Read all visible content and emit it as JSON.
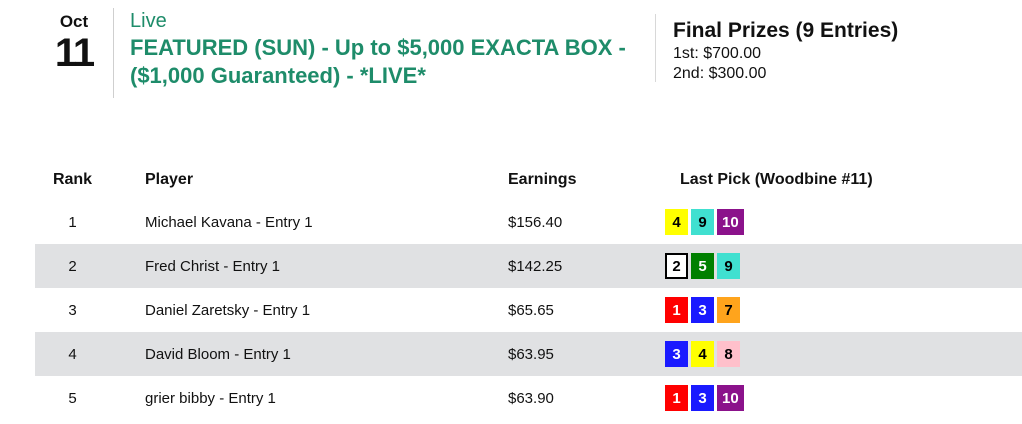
{
  "colors": {
    "accent_green": "#1e8c6a",
    "row_alt_bg": "#e0e1e3"
  },
  "event_header": {
    "date_month": "Oct",
    "date_day": "11",
    "status_label": "Live",
    "event_title": "FEATURED (SUN) - Up to $5,000 EXACTA BOX - ($1,000 Guaranteed) - *LIVE*",
    "prizes_title": "Final Prizes (9 Entries)",
    "prize_lines": [
      "1st: $700.00",
      "2nd: $300.00"
    ]
  },
  "leaderboard": {
    "columns": {
      "rank": "Rank",
      "player": "Player",
      "earnings": "Earnings",
      "last_pick": "Last Pick (Woodbine #11)"
    },
    "rows": [
      {
        "rank": "1",
        "player": "Michael Kavana - Entry 1",
        "earnings": "$156.40",
        "picks": [
          {
            "number": "4",
            "bg": "#ffff00",
            "fg": "#000000",
            "border": "#ffff00"
          },
          {
            "number": "9",
            "bg": "#40e0d0",
            "fg": "#000000",
            "border": "#40e0d0"
          },
          {
            "number": "10",
            "bg": "#8b128b",
            "fg": "#ffffff",
            "border": "#8b128b"
          }
        ]
      },
      {
        "rank": "2",
        "player": "Fred Christ - Entry 1",
        "earnings": "$142.25",
        "picks": [
          {
            "number": "2",
            "bg": "#ffffff",
            "fg": "#000000",
            "border": "#000000"
          },
          {
            "number": "5",
            "bg": "#008000",
            "fg": "#ffffff",
            "border": "#008000"
          },
          {
            "number": "9",
            "bg": "#40e0d0",
            "fg": "#000000",
            "border": "#40e0d0"
          }
        ]
      },
      {
        "rank": "3",
        "player": "Daniel Zaretsky - Entry 1",
        "earnings": "$65.65",
        "picks": [
          {
            "number": "1",
            "bg": "#ff0000",
            "fg": "#ffffff",
            "border": "#ff0000"
          },
          {
            "number": "3",
            "bg": "#1a1aff",
            "fg": "#ffffff",
            "border": "#1a1aff"
          },
          {
            "number": "7",
            "bg": "#ffa41c",
            "fg": "#000000",
            "border": "#ffa41c"
          }
        ]
      },
      {
        "rank": "4",
        "player": "David Bloom - Entry 1",
        "earnings": "$63.95",
        "picks": [
          {
            "number": "3",
            "bg": "#1a1aff",
            "fg": "#ffffff",
            "border": "#1a1aff"
          },
          {
            "number": "4",
            "bg": "#ffff00",
            "fg": "#000000",
            "border": "#ffff00"
          },
          {
            "number": "8",
            "bg": "#ffc0cb",
            "fg": "#000000",
            "border": "#ffc0cb"
          }
        ]
      },
      {
        "rank": "5",
        "player": "grier bibby - Entry 1",
        "earnings": "$63.90",
        "picks": [
          {
            "number": "1",
            "bg": "#ff0000",
            "fg": "#ffffff",
            "border": "#ff0000"
          },
          {
            "number": "3",
            "bg": "#1a1aff",
            "fg": "#ffffff",
            "border": "#1a1aff"
          },
          {
            "number": "10",
            "bg": "#8b128b",
            "fg": "#ffffff",
            "border": "#8b128b"
          }
        ]
      }
    ]
  }
}
